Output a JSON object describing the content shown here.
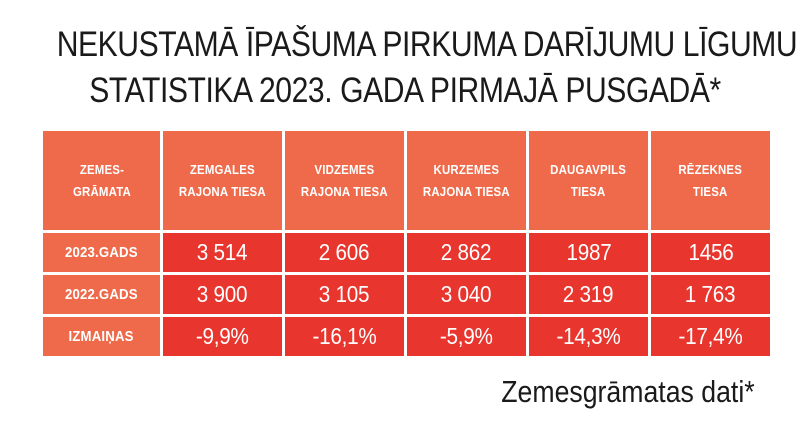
{
  "chart_data": {
    "type": "table",
    "title_lines": [
      "NEKUSTAMĀ ĪPAŠUMA PIRKUMA DARĪJUMU LĪGUMU",
      "STATISTIKA 2023. GADA PIRMAJĀ PUSGADĀ*"
    ],
    "corner_header": [
      "ZEMES-",
      "GRĀMATA"
    ],
    "columns": [
      [
        "ZEMGALES",
        "RAJONA TIESA"
      ],
      [
        "VIDZEMES",
        "RAJONA TIESA"
      ],
      [
        "KURZEMES",
        "RAJONA TIESA"
      ],
      [
        "DAUGAVPILS",
        "TIESA"
      ],
      [
        "RĒZEKNES",
        "TIESA"
      ]
    ],
    "rows": [
      {
        "label": "2023.GADS",
        "values": [
          "3 514",
          "2 606",
          "2 862",
          "1987",
          "1456"
        ]
      },
      {
        "label": "2022.GADS",
        "values": [
          "3 900",
          "3 105",
          "3 040",
          "2 319",
          "1 763"
        ]
      },
      {
        "label": "IZMAIŅAS",
        "values": [
          "-9,9%",
          "-16,1%",
          "-5,9%",
          "-14,3%",
          "-17,4%"
        ]
      }
    ],
    "source": "Zemesgrāmatas dati*"
  },
  "colors": {
    "header_bg": "#ee6a4b",
    "cell_bg": "#e8362e",
    "text_on_color": "#ffffff",
    "title_text": "#1a1a1a"
  }
}
